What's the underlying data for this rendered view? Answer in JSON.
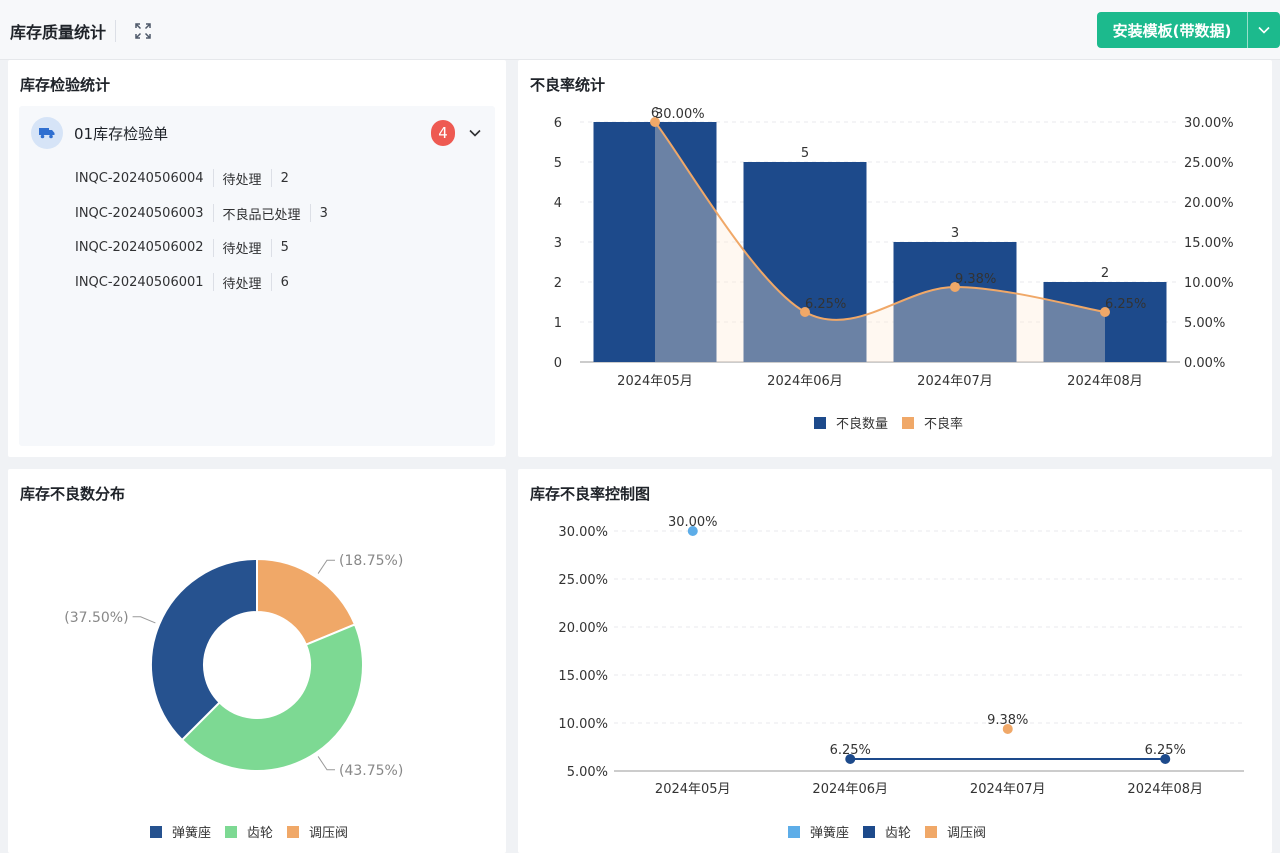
{
  "page": {
    "title": "库存质量统计",
    "expand_icon": "expand-icon",
    "install_label": "安装模板(带数据)",
    "install_caret_icon": "chevron-down-icon",
    "accent": "#1cba8d"
  },
  "inspection": {
    "title": "库存检验统计",
    "group": {
      "icon": "truck-icon",
      "label": "01库存检验单",
      "count": "4"
    },
    "rows": [
      {
        "code": "INQC-20240506004",
        "status": "待处理",
        "qty": "2"
      },
      {
        "code": "INQC-20240506003",
        "status": "不良品已处理",
        "qty": "3"
      },
      {
        "code": "INQC-20240506002",
        "status": "待处理",
        "qty": "5"
      },
      {
        "code": "INQC-20240506001",
        "status": "待处理",
        "qty": "6"
      }
    ]
  },
  "defect_rate": {
    "title": "不良率统计",
    "chart_data": {
      "type": "bar",
      "categories": [
        "2024年05月",
        "2024年06月",
        "2024年07月",
        "2024年08月"
      ],
      "series": [
        {
          "name": "不良数量",
          "type": "bar",
          "values": [
            6,
            5,
            3,
            2
          ],
          "labels": [
            "6",
            "5",
            "3",
            "2"
          ],
          "color": "#1d4a8b"
        },
        {
          "name": "不良率",
          "type": "line",
          "values": [
            30.0,
            6.25,
            9.38,
            6.25
          ],
          "labels": [
            "30.00%",
            "6.25%",
            "9.38%",
            "6.25%"
          ],
          "color": "#f0a868"
        }
      ],
      "y_left": {
        "range": [
          0,
          6
        ],
        "ticks": [
          "0",
          "1",
          "2",
          "3",
          "4",
          "5",
          "6"
        ]
      },
      "y_right": {
        "range": [
          0,
          30
        ],
        "ticks": [
          "0.00%",
          "5.00%",
          "10.00%",
          "15.00%",
          "20.00%",
          "25.00%",
          "30.00%"
        ]
      },
      "grid": true,
      "legend": "bottom"
    }
  },
  "distribution": {
    "title": "库存不良数分布",
    "chart_data": {
      "type": "pie",
      "donut": true,
      "slices": [
        {
          "name": "调压阀",
          "value": 18.75,
          "label": "(18.75%)",
          "color": "#f0a868"
        },
        {
          "name": "齿轮",
          "value": 43.75,
          "label": "(43.75%)",
          "color": "#7dd993"
        },
        {
          "name": "弹簧座",
          "value": 37.5,
          "label": "(37.50%)",
          "color": "#26528f"
        }
      ],
      "legend_order": [
        "弹簧座",
        "齿轮",
        "调压阀"
      ],
      "legend": "bottom"
    }
  },
  "control": {
    "title": "库存不良率控制图",
    "chart_data": {
      "type": "scatter",
      "categories": [
        "2024年05月",
        "2024年06月",
        "2024年07月",
        "2024年08月"
      ],
      "points": [
        {
          "x": "2024年05月",
          "y": 30.0,
          "label": "30.00%",
          "series": "弹簧座"
        },
        {
          "x": "2024年06月",
          "y": 6.25,
          "label": "6.25%",
          "series": "齿轮"
        },
        {
          "x": "2024年07月",
          "y": 9.38,
          "label": "9.38%",
          "series": "调压阀"
        },
        {
          "x": "2024年08月",
          "y": 6.25,
          "label": "6.25%",
          "series": "齿轮"
        }
      ],
      "series": [
        {
          "name": "弹簧座",
          "color": "#5dade8"
        },
        {
          "name": "齿轮",
          "color": "#1d4a8b"
        },
        {
          "name": "调压阀",
          "color": "#f0a868"
        }
      ],
      "lines": [
        {
          "series": "齿轮",
          "from": "2024年06月",
          "to": "2024年08月"
        }
      ],
      "y_range": [
        5,
        30
      ],
      "y_ticks": [
        "5.00%",
        "10.00%",
        "15.00%",
        "20.00%",
        "25.00%",
        "30.00%"
      ],
      "grid": true,
      "legend": "bottom"
    }
  }
}
